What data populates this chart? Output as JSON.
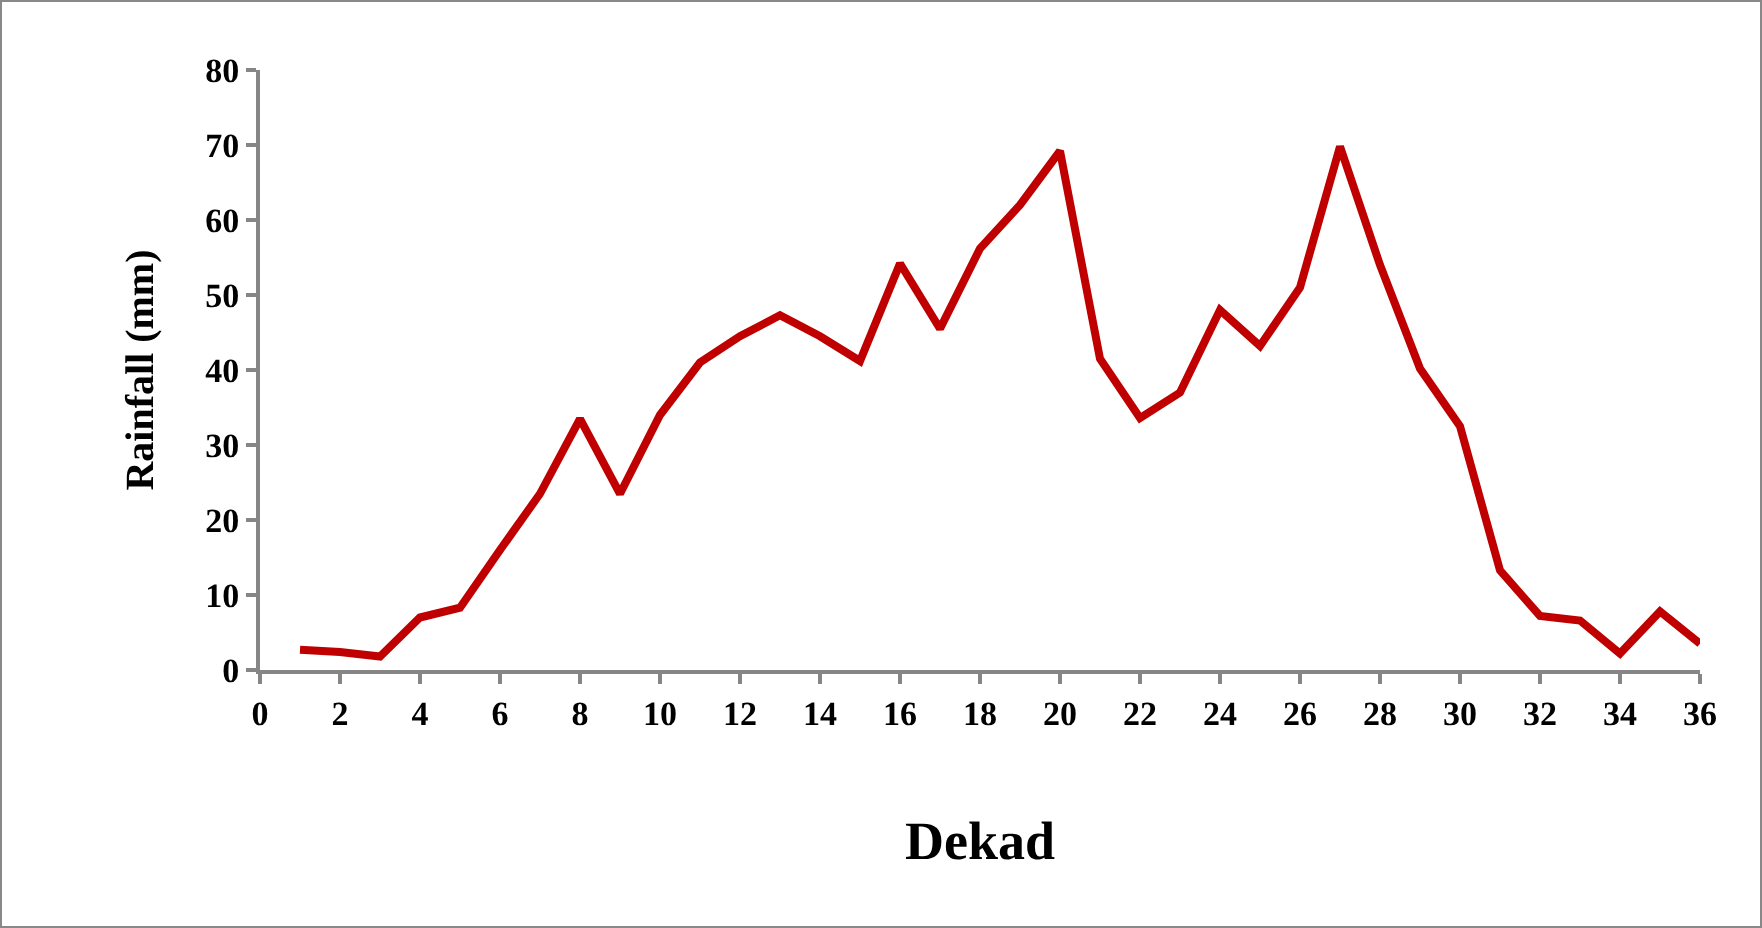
{
  "chart_data": {
    "type": "line",
    "xlabel": "Dekad",
    "ylabel": "Rainfall (mm)",
    "x": [
      1,
      2,
      3,
      4,
      5,
      6,
      7,
      8,
      9,
      10,
      11,
      12,
      13,
      14,
      15,
      16,
      17,
      18,
      19,
      20,
      21,
      22,
      23,
      24,
      25,
      26,
      27,
      28,
      29,
      30,
      31,
      32,
      33,
      34,
      35,
      36
    ],
    "series": [
      {
        "color": "#c00000",
        "values": [
          2.7,
          2.4,
          1.8,
          7,
          8.3,
          16,
          23.5,
          33.5,
          23.5,
          34,
          41,
          44.5,
          47.3,
          44.5,
          41.2,
          54.2,
          45.5,
          56.2,
          62,
          69.2,
          41.5,
          33.6,
          37,
          48,
          43.2,
          51,
          69.8,
          54,
          40.2,
          32.5,
          13.3,
          7.2,
          6.6,
          2.2,
          7.8,
          3.5
        ]
      }
    ],
    "xlim": [
      0,
      36
    ],
    "xticks": [
      0,
      2,
      4,
      6,
      8,
      10,
      12,
      14,
      16,
      18,
      20,
      22,
      24,
      26,
      28,
      30,
      32,
      34,
      36
    ],
    "ylim": [
      0,
      80
    ],
    "yticks": [
      0,
      10,
      20,
      30,
      40,
      50,
      60,
      70,
      80
    ],
    "grid": false,
    "marker": "none",
    "line_style": "solid"
  }
}
